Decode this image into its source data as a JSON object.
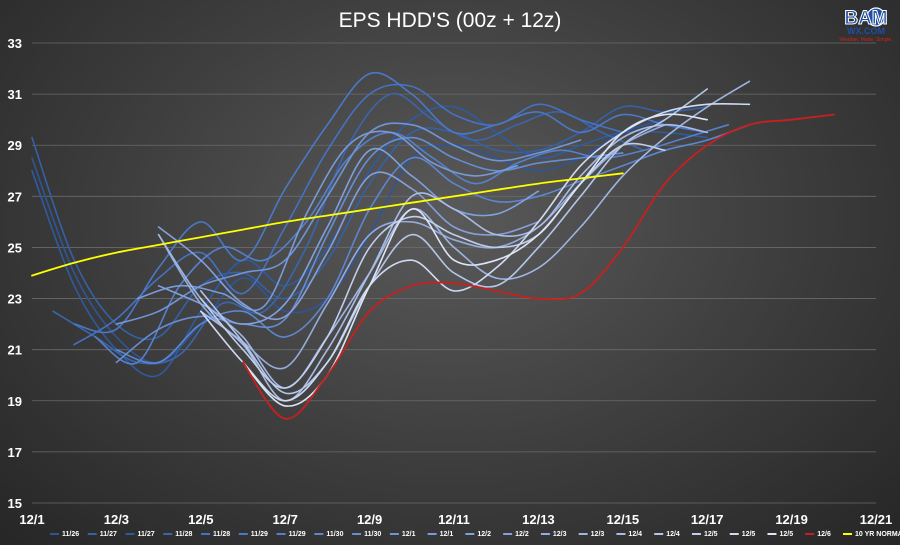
{
  "colors": {
    "grid": "#6a6a6a",
    "normal": "#ffff00",
    "latest": "#c8201e",
    "text": "#ffffff"
  },
  "logo": {
    "main": "BAM",
    "sub": "WX.COM",
    "tag": "Weather. Made. Simple."
  },
  "chart_data": {
    "type": "line",
    "title": "EPS HDD'S (00z + 12z)",
    "xlabel": "",
    "ylabel": "",
    "x_range": [
      0,
      20
    ],
    "x_tick_values": [
      0,
      2,
      4,
      6,
      8,
      10,
      12,
      14,
      16,
      18,
      20
    ],
    "x_tick_labels": [
      "12/1",
      "12/3",
      "12/5",
      "12/7",
      "12/9",
      "12/11",
      "12/13",
      "12/15",
      "12/17",
      "12/19",
      "12/21"
    ],
    "ylim": [
      15,
      33
    ],
    "y_ticks": [
      15,
      17,
      19,
      21,
      23,
      25,
      27,
      29,
      31,
      33
    ],
    "grid": true,
    "legend_position": "bottom",
    "series": [
      {
        "name": "11/26",
        "color": "#2f5597",
        "x0": 0,
        "values": [
          28.5,
          24,
          21.5,
          20.5,
          22,
          23.8,
          22.5,
          23,
          25.5,
          28.5,
          29,
          28.5,
          28,
          28.5,
          29.5,
          30
        ]
      },
      {
        "name": "11/27",
        "color": "#3461a8",
        "x0": 0,
        "values": [
          29.3,
          24.5,
          22,
          21.5,
          23.5,
          24,
          23,
          24.5,
          27.5,
          29.5,
          29.5,
          28.8,
          28.8,
          29.5,
          30.5,
          30.3,
          30.5
        ]
      },
      {
        "name": "11/27",
        "color": "#2e5ba0",
        "x0": 0,
        "values": [
          28,
          23.5,
          21,
          20,
          22.5,
          24.5,
          23.5,
          25,
          28,
          30,
          30.5,
          29.5,
          28.5,
          29,
          29.5,
          29.5,
          29.3
        ]
      },
      {
        "name": "11/28",
        "color": "#3a66ad",
        "x0": 0.5,
        "values": [
          22.5,
          21.5,
          20.5,
          20.8,
          22.8,
          22.5,
          25,
          29,
          31,
          30,
          29.2,
          29.8,
          30.3,
          29.5,
          28.8
        ]
      },
      {
        "name": "11/28",
        "color": "#4472c4",
        "x0": 1,
        "values": [
          21.2,
          22.2,
          23.8,
          24.8,
          23.2,
          25.8,
          28.8,
          31,
          31.3,
          30.2,
          29.8,
          30.6,
          30,
          29.5
        ]
      },
      {
        "name": "11/29",
        "color": "#4a78c8",
        "x0": 1,
        "values": [
          22,
          21.8,
          24.2,
          26,
          24.5,
          27.3,
          29.8,
          31.8,
          31,
          29.5,
          29.8,
          30.3,
          29.5,
          30.2,
          29.8,
          29.5
        ]
      },
      {
        "name": "11/29",
        "color": "#5580cc",
        "x0": 1.5,
        "values": [
          21.5,
          20.5,
          23.5,
          25,
          24.5,
          26,
          28.5,
          29.5,
          28.5,
          27.5,
          28.3,
          28.8,
          28.5,
          28.8,
          29.3,
          29.8
        ]
      },
      {
        "name": "11/30",
        "color": "#5c86cf",
        "x0": 2,
        "values": [
          21,
          20.5,
          22,
          22.5,
          21.5,
          23,
          26.5,
          28.5,
          27.5,
          26.8,
          27,
          27.6,
          28.2,
          28.8,
          29.2,
          29.8
        ]
      },
      {
        "name": "11/30",
        "color": "#668ed3",
        "x0": 2,
        "values": [
          20.5,
          21.8,
          22.3,
          22,
          22.2,
          25.5,
          28.5,
          29.3,
          28.5,
          28,
          28.3,
          28.5,
          28.7
        ]
      },
      {
        "name": "12/1",
        "color": "#7095d6",
        "x0": 2,
        "values": [
          22,
          22.5,
          23.5,
          24,
          24.5,
          27,
          29.5,
          29.8,
          29,
          28.4,
          28.7,
          29.2
        ]
      },
      {
        "name": "12/1",
        "color": "#789bd9",
        "x0": 2.5,
        "values": [
          23,
          23.5,
          23.2,
          22.7,
          26.3,
          29,
          29.5,
          28.3,
          27.8,
          28.2
        ]
      },
      {
        "name": "12/2",
        "color": "#7fa1dc",
        "x0": 3,
        "values": [
          23.5,
          22.8,
          22,
          22.8,
          25.8,
          28.8,
          27.8,
          26.5,
          26.3,
          27.2
        ]
      },
      {
        "name": "12/2",
        "color": "#879fd9",
        "x0": 3,
        "values": [
          25.8,
          24.5,
          22.8,
          22.3,
          24.8,
          27.8,
          27.3,
          25.8,
          25.5,
          26
        ]
      },
      {
        "name": "12/3",
        "color": "#94acde",
        "x0": 3,
        "values": [
          25.5,
          22.8,
          21.3,
          20.3,
          22.8,
          25.5,
          26,
          25.3,
          25,
          25.8,
          27.5,
          29,
          29.8
        ]
      },
      {
        "name": "12/3",
        "color": "#9fb5e2",
        "x0": 3,
        "values": [
          25.5,
          23,
          21.5,
          19.5,
          21.5,
          24,
          26.5,
          25,
          23.8,
          24.2,
          25.8,
          27.8,
          29.3,
          30.5,
          31.5
        ]
      },
      {
        "name": "12/4",
        "color": "#aabde6",
        "x0": 4,
        "values": [
          22.5,
          21.2,
          19,
          21,
          24,
          27,
          26.5,
          25.5,
          25.8,
          27.8,
          29.3,
          29.8,
          29.5
        ]
      },
      {
        "name": "12/4",
        "color": "#b4c6e9",
        "x0": 4,
        "values": [
          23.3,
          21.3,
          19.3,
          20.5,
          23.5,
          25.5,
          24,
          23.5,
          25,
          27,
          29,
          30,
          31.2
        ]
      },
      {
        "name": "12/5",
        "color": "#c0cfee",
        "x0": 4,
        "values": [
          23,
          21,
          19.5,
          21.5,
          25,
          26.2,
          25.5,
          25,
          25.5,
          27.5,
          29,
          28.8
        ]
      },
      {
        "name": "12/5",
        "color": "#d0dbf2",
        "x0": 4,
        "values": [
          22.5,
          20.5,
          19,
          20.5,
          23.5,
          24.5,
          23.3,
          24.2,
          26,
          28.2,
          29.5,
          30.3,
          30.6,
          30.6
        ]
      },
      {
        "name": "12/5",
        "color": "#dde6f7",
        "x0": 5,
        "values": [
          20.5,
          18.8,
          20,
          23.5,
          26.5,
          24.5,
          24.5,
          25.5,
          27.5,
          29.5,
          30.2,
          30
        ]
      },
      {
        "name": "12/6",
        "color": "#c8201e",
        "width": 1.8,
        "x0": 5,
        "values": [
          20.5,
          18.3,
          20,
          22.5,
          23.5,
          23.6,
          23.3,
          23,
          23.2,
          25,
          27.5,
          29,
          29.8,
          30,
          30.2
        ]
      },
      {
        "name": "10 YR NORMAL",
        "color": "#ffff00",
        "width": 1.8,
        "x0": 0,
        "values": [
          23.9,
          24.4,
          24.8,
          25.1,
          25.4,
          25.7,
          26,
          26.25,
          26.5,
          26.75,
          27,
          27.25,
          27.5,
          27.7,
          27.9
        ]
      }
    ]
  }
}
